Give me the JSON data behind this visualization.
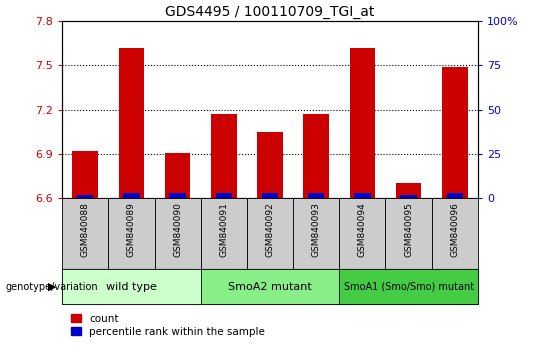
{
  "title": "GDS4495 / 100110709_TGI_at",
  "samples": [
    "GSM840088",
    "GSM840089",
    "GSM840090",
    "GSM840091",
    "GSM840092",
    "GSM840093",
    "GSM840094",
    "GSM840095",
    "GSM840096"
  ],
  "counts": [
    6.92,
    7.62,
    6.91,
    7.17,
    7.05,
    7.17,
    7.62,
    6.7,
    7.49
  ],
  "percentiles": [
    2,
    3,
    3,
    3,
    3,
    3,
    3,
    2,
    3
  ],
  "ylim_left": [
    6.6,
    7.8
  ],
  "ylim_right": [
    0,
    100
  ],
  "yticks_left": [
    6.6,
    6.9,
    7.2,
    7.5,
    7.8
  ],
  "yticks_right": [
    0,
    25,
    50,
    75,
    100
  ],
  "ytick_labels_left": [
    "6.6",
    "6.9",
    "7.2",
    "7.5",
    "7.8"
  ],
  "ytick_labels_right": [
    "0",
    "25",
    "50",
    "75",
    "100%"
  ],
  "hgrid_values": [
    6.9,
    7.2,
    7.5
  ],
  "groups": [
    {
      "label": "wild type",
      "start": 0,
      "end": 3,
      "color": "#ccffcc"
    },
    {
      "label": "SmoA2 mutant",
      "start": 3,
      "end": 6,
      "color": "#88ee88"
    },
    {
      "label": "SmoA1 (Smo/Smo) mutant",
      "start": 6,
      "end": 9,
      "color": "#44cc44"
    }
  ],
  "count_color": "#cc0000",
  "percentile_color": "#0000cc",
  "tick_color_left": "#cc0000",
  "tick_color_right": "#0000cc",
  "legend_count": "count",
  "legend_pct": "percentile rank within the sample",
  "genotype_label": "genotype/variation",
  "sample_box_color": "#cccccc",
  "bg": "#ffffff"
}
